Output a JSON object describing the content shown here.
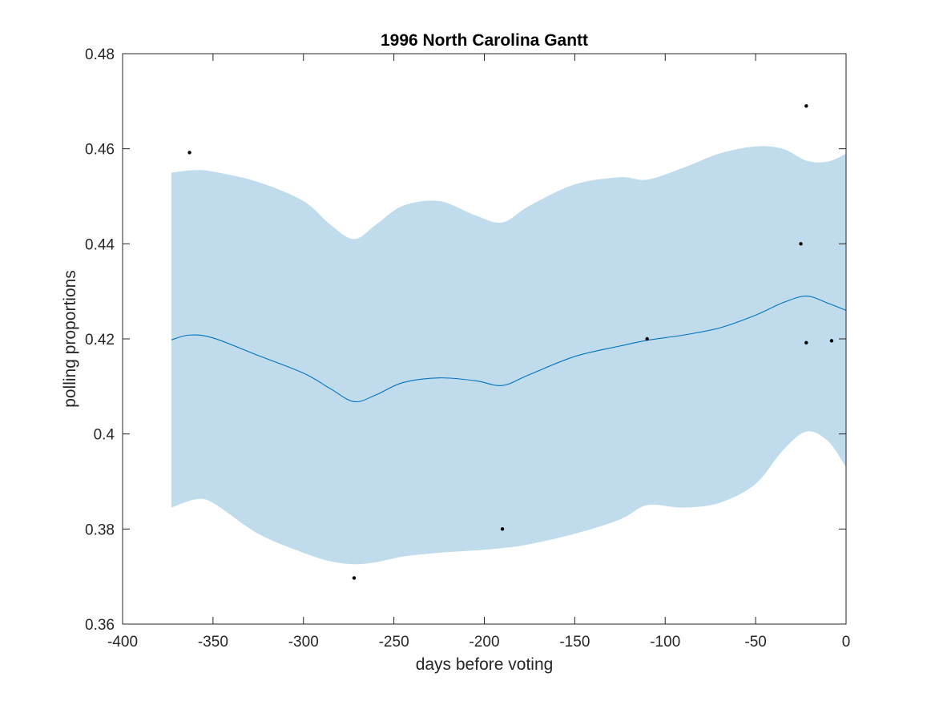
{
  "chart_data": {
    "type": "line",
    "title": "1996 North Carolina Gantt",
    "xlabel": "days before voting",
    "ylabel": "polling proportions",
    "xlim": [
      -400,
      0
    ],
    "ylim": [
      0.36,
      0.48
    ],
    "xticks": [
      -400,
      -350,
      -300,
      -250,
      -200,
      -150,
      -100,
      -50,
      0
    ],
    "yticks": [
      0.36,
      0.38,
      0.4,
      0.42,
      0.44,
      0.46,
      0.48
    ],
    "xtick_labels": [
      "-400",
      "-350",
      "-300",
      "-250",
      "-200",
      "-150",
      "-100",
      "-50",
      "0"
    ],
    "ytick_labels": [
      "0.36",
      "0.38",
      "0.4",
      "0.42",
      "0.44",
      "0.46",
      "0.48"
    ],
    "grid": false,
    "colors": {
      "band": "#c0dcec",
      "mean_line": "#0072bd",
      "points": "#000000",
      "axes": "#262626"
    },
    "mean_curve": {
      "x": [
        -373,
        -363,
        -350,
        -325,
        -300,
        -285,
        -272,
        -260,
        -245,
        -225,
        -205,
        -190,
        -175,
        -150,
        -125,
        -110,
        -90,
        -70,
        -50,
        -35,
        -22,
        -10,
        0
      ],
      "y": [
        0.4198,
        0.4208,
        0.4202,
        0.4165,
        0.4128,
        0.4095,
        0.4068,
        0.4082,
        0.4108,
        0.4118,
        0.4112,
        0.4102,
        0.4125,
        0.4163,
        0.4185,
        0.4197,
        0.4208,
        0.4223,
        0.425,
        0.4276,
        0.429,
        0.4275,
        0.426
      ]
    },
    "band_upper": {
      "x": [
        -373,
        -360,
        -350,
        -325,
        -300,
        -285,
        -272,
        -260,
        -245,
        -225,
        -205,
        -190,
        -175,
        -150,
        -125,
        -110,
        -90,
        -70,
        -50,
        -35,
        -22,
        -10,
        0
      ],
      "y": [
        0.455,
        0.4555,
        0.4552,
        0.453,
        0.449,
        0.444,
        0.441,
        0.444,
        0.448,
        0.449,
        0.446,
        0.4445,
        0.448,
        0.4525,
        0.454,
        0.4535,
        0.456,
        0.459,
        0.4605,
        0.46,
        0.4575,
        0.4573,
        0.459
      ]
    },
    "band_lower": {
      "x": [
        -373,
        -360,
        -350,
        -325,
        -300,
        -285,
        -272,
        -260,
        -245,
        -225,
        -205,
        -190,
        -175,
        -150,
        -125,
        -110,
        -90,
        -70,
        -50,
        -35,
        -22,
        -10,
        0
      ],
      "y": [
        0.3845,
        0.3862,
        0.3855,
        0.379,
        0.375,
        0.3732,
        0.3726,
        0.373,
        0.3742,
        0.375,
        0.3755,
        0.376,
        0.3768,
        0.379,
        0.382,
        0.385,
        0.3845,
        0.3855,
        0.3895,
        0.3965,
        0.4005,
        0.3985,
        0.393
      ]
    },
    "points": [
      {
        "x": -363,
        "y": 0.4592
      },
      {
        "x": -272,
        "y": 0.3697
      },
      {
        "x": -190,
        "y": 0.38
      },
      {
        "x": -110,
        "y": 0.42
      },
      {
        "x": -25,
        "y": 0.44
      },
      {
        "x": -22,
        "y": 0.469
      },
      {
        "x": -22,
        "y": 0.4192
      },
      {
        "x": -8,
        "y": 0.4196
      }
    ]
  }
}
